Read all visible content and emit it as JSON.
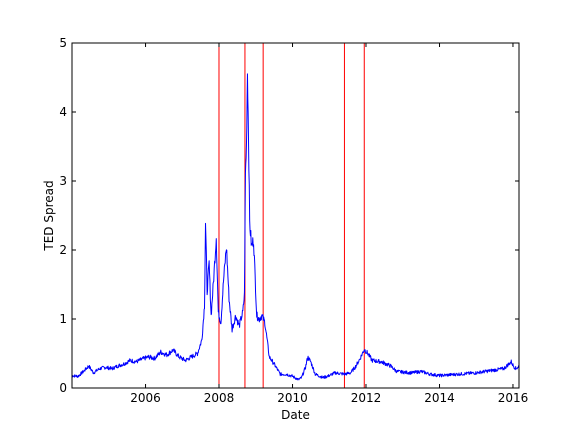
{
  "chart_data": {
    "type": "line",
    "title": "",
    "xlabel": "Date",
    "ylabel": "TED Spread",
    "xlim": [
      "2004-01-01",
      "2016-03-01"
    ],
    "ylim": [
      0,
      5
    ],
    "x_ticks": [
      "2006-01-01",
      "2008-01-01",
      "2010-01-01",
      "2012-01-01",
      "2014-01-01",
      "2016-01-01"
    ],
    "x_tick_labels": [
      "2006",
      "2008",
      "2010",
      "2012",
      "2014",
      "2016"
    ],
    "y_ticks": [
      0,
      1,
      2,
      3,
      4,
      5
    ],
    "y_tick_labels": [
      "0",
      "1",
      "2",
      "3",
      "4",
      "5"
    ],
    "grid": false,
    "series": [
      {
        "color": "#0000ff",
        "points": [
          [
            "2004-01-01",
            0.18
          ],
          [
            "2004-03-01",
            0.17
          ],
          [
            "2004-05-01",
            0.25
          ],
          [
            "2004-06-15",
            0.32
          ],
          [
            "2004-08-01",
            0.22
          ],
          [
            "2004-10-01",
            0.28
          ],
          [
            "2004-12-01",
            0.3
          ],
          [
            "2005-02-01",
            0.28
          ],
          [
            "2005-04-01",
            0.32
          ],
          [
            "2005-06-01",
            0.35
          ],
          [
            "2005-08-01",
            0.4
          ],
          [
            "2005-10-01",
            0.38
          ],
          [
            "2005-12-01",
            0.42
          ],
          [
            "2006-02-01",
            0.45
          ],
          [
            "2006-04-01",
            0.43
          ],
          [
            "2006-06-01",
            0.52
          ],
          [
            "2006-08-01",
            0.48
          ],
          [
            "2006-10-01",
            0.55
          ],
          [
            "2006-12-01",
            0.45
          ],
          [
            "2007-02-01",
            0.4
          ],
          [
            "2007-04-01",
            0.45
          ],
          [
            "2007-06-01",
            0.5
          ],
          [
            "2007-07-15",
            0.7
          ],
          [
            "2007-08-10",
            1.2
          ],
          [
            "2007-08-20",
            2.4
          ],
          [
            "2007-09-05",
            1.4
          ],
          [
            "2007-09-25",
            1.8
          ],
          [
            "2007-10-15",
            1.05
          ],
          [
            "2007-11-10",
            1.6
          ],
          [
            "2007-12-05",
            2.2
          ],
          [
            "2007-12-25",
            1.1
          ],
          [
            "2008-01-20",
            0.95
          ],
          [
            "2008-02-15",
            1.55
          ],
          [
            "2008-03-15",
            2.05
          ],
          [
            "2008-04-10",
            1.3
          ],
          [
            "2008-05-10",
            0.85
          ],
          [
            "2008-06-15",
            1.05
          ],
          [
            "2008-07-20",
            0.9
          ],
          [
            "2008-08-25",
            1.1
          ],
          [
            "2008-09-10",
            1.35
          ],
          [
            "2008-09-20",
            3.1
          ],
          [
            "2008-09-30",
            3.5
          ],
          [
            "2008-10-10",
            4.58
          ],
          [
            "2008-10-20",
            3.7
          ],
          [
            "2008-11-01",
            2.4
          ],
          [
            "2008-11-20",
            2.05
          ],
          [
            "2008-12-10",
            2.15
          ],
          [
            "2009-01-10",
            1.05
          ],
          [
            "2009-02-05",
            1.0
          ],
          [
            "2009-03-01",
            1.05
          ],
          [
            "2009-04-01",
            0.95
          ],
          [
            "2009-05-15",
            0.45
          ],
          [
            "2009-07-01",
            0.35
          ],
          [
            "2009-09-01",
            0.2
          ],
          [
            "2009-11-01",
            0.2
          ],
          [
            "2010-01-01",
            0.17
          ],
          [
            "2010-03-01",
            0.12
          ],
          [
            "2010-04-01",
            0.15
          ],
          [
            "2010-05-10",
            0.3
          ],
          [
            "2010-06-01",
            0.45
          ],
          [
            "2010-07-01",
            0.38
          ],
          [
            "2010-08-15",
            0.2
          ],
          [
            "2010-11-01",
            0.15
          ],
          [
            "2011-01-01",
            0.18
          ],
          [
            "2011-03-01",
            0.22
          ],
          [
            "2011-06-01",
            0.2
          ],
          [
            "2011-08-01",
            0.22
          ],
          [
            "2011-09-15",
            0.3
          ],
          [
            "2011-11-01",
            0.42
          ],
          [
            "2011-12-15",
            0.56
          ],
          [
            "2012-01-20",
            0.5
          ],
          [
            "2012-03-01",
            0.4
          ],
          [
            "2012-06-01",
            0.38
          ],
          [
            "2012-09-01",
            0.32
          ],
          [
            "2012-11-01",
            0.24
          ],
          [
            "2013-01-01",
            0.23
          ],
          [
            "2013-04-01",
            0.22
          ],
          [
            "2013-07-01",
            0.24
          ],
          [
            "2013-10-01",
            0.2
          ],
          [
            "2014-01-01",
            0.18
          ],
          [
            "2014-04-01",
            0.19
          ],
          [
            "2014-07-01",
            0.2
          ],
          [
            "2014-10-01",
            0.21
          ],
          [
            "2015-01-01",
            0.22
          ],
          [
            "2015-04-01",
            0.24
          ],
          [
            "2015-07-01",
            0.26
          ],
          [
            "2015-10-01",
            0.28
          ],
          [
            "2015-12-15",
            0.38
          ],
          [
            "2016-01-05",
            0.32
          ],
          [
            "2016-02-01",
            0.28
          ],
          [
            "2016-03-01",
            0.32
          ]
        ]
      }
    ],
    "vertical_lines": {
      "color": "#ff0000",
      "dates": [
        "2008-01-01",
        "2008-09-15",
        "2009-03-15",
        "2011-06-01",
        "2011-12-15"
      ]
    }
  }
}
